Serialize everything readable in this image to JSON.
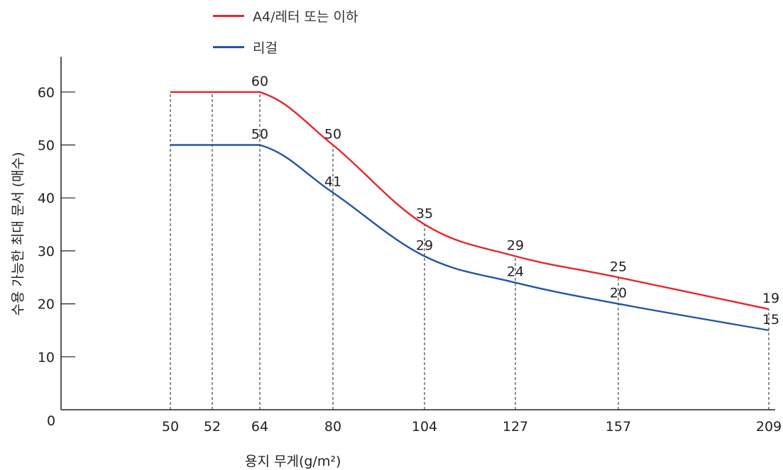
{
  "chart_data": {
    "type": "line",
    "title": "",
    "xlabel": "용지 무게(g/m²)",
    "ylabel": "수용 가능한 최대 문서 (매수)",
    "x_ticks": [
      50,
      52,
      64,
      80,
      104,
      127,
      157,
      209
    ],
    "y_ticks": [
      0,
      10,
      20,
      30,
      40,
      50,
      60
    ],
    "ylim": [
      0,
      65
    ],
    "grid": "vertical dashed guide lines at tick positions",
    "legend_position": "top",
    "series": [
      {
        "name": "A4/레터 또는 이하",
        "color": "#e8262a",
        "x": [
          50,
          64,
          80,
          104,
          127,
          157,
          209
        ],
        "y": [
          60,
          60,
          50,
          35,
          29,
          25,
          19
        ]
      },
      {
        "name": "리걸",
        "color": "#2456a6",
        "x": [
          50,
          64,
          80,
          104,
          127,
          157,
          209
        ],
        "y": [
          50,
          50,
          41,
          29,
          24,
          20,
          15
        ]
      }
    ]
  }
}
